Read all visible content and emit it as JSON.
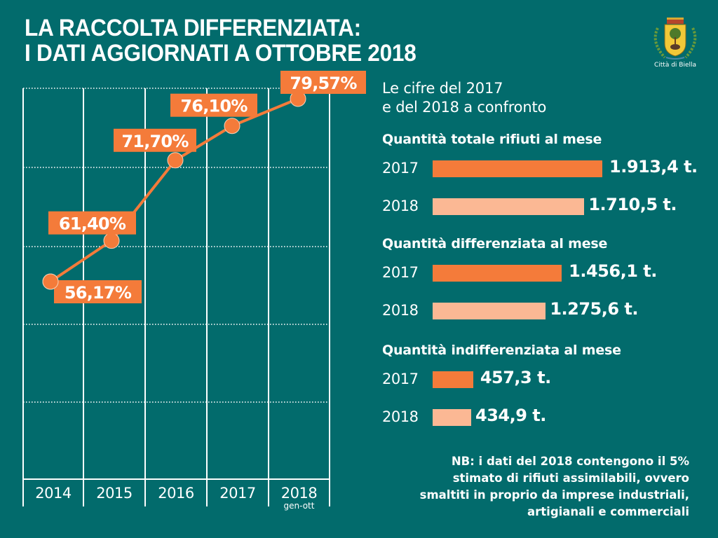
{
  "header": {
    "title_line1": "LA RACCOLTA DIFFERENZIATA:",
    "title_line2": "I DATI AGGIORNATI A OTTOBRE 2018",
    "logo_label": "Città di Biella"
  },
  "colors": {
    "background": "#026b6c",
    "accent": "#f47b3a",
    "accent_light": "#fbb894",
    "text": "#ffffff"
  },
  "comparison": {
    "subtitle_line1": "Le cifre del 2017",
    "subtitle_line2": "e del 2018 a confronto",
    "sections": [
      {
        "title": "Quantità totale rifiuti al mese",
        "rows": [
          {
            "year": "2017",
            "value": 1913.4,
            "label": "1.913,4 t."
          },
          {
            "year": "2018",
            "value": 1710.5,
            "label": "1.710,5 t."
          }
        ]
      },
      {
        "title": "Quantità differenziata al mese",
        "rows": [
          {
            "year": "2017",
            "value": 1456.1,
            "label": "1.456,1 t."
          },
          {
            "year": "2018",
            "value": 1275.6,
            "label": "1.275,6 t."
          }
        ]
      },
      {
        "title": "Quantità indifferenziata al mese",
        "rows": [
          {
            "year": "2017",
            "value": 457.3,
            "label": "457,3 t."
          },
          {
            "year": "2018",
            "value": 434.9,
            "label": "434,9 t."
          }
        ]
      }
    ]
  },
  "note": {
    "line1": "NB: i dati del 2018 contengono il 5%",
    "line2": "stimato di rifiuti assimilabili, ovvero",
    "line3": "smaltiti in proprio da imprese industriali,",
    "line4": "artigianali e commerciali"
  },
  "chart_data": [
    {
      "type": "line",
      "title": "Percentuale raccolta differenziata",
      "categories": [
        "2014",
        "2015",
        "2016",
        "2017",
        "2018"
      ],
      "category_sublabels": [
        "",
        "",
        "",
        "",
        "gen-ott"
      ],
      "values": [
        56.17,
        61.4,
        71.7,
        76.1,
        79.57
      ],
      "data_labels": [
        "56,17%",
        "61,40%",
        "71,70%",
        "76,10%",
        "79,57%"
      ],
      "unit": "%",
      "grid": true,
      "xlabel": "",
      "ylabel": ""
    },
    {
      "type": "bar",
      "orientation": "horizontal",
      "title": "Quantità totale rifiuti al mese",
      "categories": [
        "2017",
        "2018"
      ],
      "values": [
        1913.4,
        1710.5
      ],
      "unit": "t."
    },
    {
      "type": "bar",
      "orientation": "horizontal",
      "title": "Quantità differenziata al mese",
      "categories": [
        "2017",
        "2018"
      ],
      "values": [
        1456.1,
        1275.6
      ],
      "unit": "t."
    },
    {
      "type": "bar",
      "orientation": "horizontal",
      "title": "Quantità indifferenziata al mese",
      "categories": [
        "2017",
        "2018"
      ],
      "values": [
        457.3,
        434.9
      ],
      "unit": "t."
    }
  ]
}
